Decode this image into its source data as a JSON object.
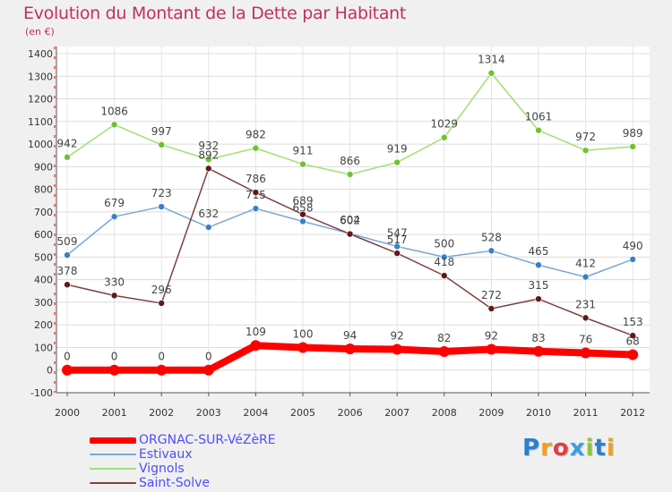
{
  "header": {
    "title": "Evolution du Montant de la Dette par Habitant",
    "unit": "(en €)"
  },
  "logo": {
    "text": "Proxiti",
    "colors": [
      "#2a7fd0",
      "#f0a020",
      "#e04040",
      "#3aa0e0",
      "#8cc63f",
      "#2a7fd0",
      "#f0a020"
    ]
  },
  "chart_data": {
    "type": "line",
    "title": "Evolution du Montant de la Dette par Habitant",
    "ylabel": "(en €)",
    "xlabel": "",
    "x": [
      "2000",
      "2001",
      "2002",
      "2003",
      "2004",
      "2005",
      "2006",
      "2007",
      "2008",
      "2009",
      "2010",
      "2011",
      "2012"
    ],
    "ylim": [
      -100,
      1400
    ],
    "yticks": [
      "-100",
      "0",
      "100",
      "200",
      "300",
      "400",
      "500",
      "600",
      "700",
      "800",
      "900",
      "1000",
      "1100",
      "1200",
      "1300",
      "1400"
    ],
    "grid": "horizontal",
    "legend_position": "bottom-left",
    "series": [
      {
        "name": "Vignols",
        "color": "#a0e070",
        "marker": "#70c030",
        "values": [
          942,
          1086,
          997,
          932,
          982,
          911,
          866,
          919,
          1029,
          1314,
          1061,
          972,
          989
        ],
        "labels": [
          "942",
          "1086",
          "997",
          "932",
          "982",
          "911",
          "866",
          "919",
          "1029",
          "1314",
          "1061",
          "972",
          "989"
        ]
      },
      {
        "name": "Estivaux",
        "color": "#78a8d8",
        "marker": "#3a80c8",
        "values": [
          509,
          679,
          723,
          632,
          715,
          658,
          604,
          547,
          500,
          528,
          465,
          412,
          490
        ],
        "labels": [
          "509",
          "679",
          "723",
          "632",
          "715",
          "658",
          "604",
          "547",
          "500",
          "528",
          "465",
          "412",
          "490"
        ]
      },
      {
        "name": "Saint-Solve",
        "color": "#804040",
        "marker": "#601818",
        "values": [
          378,
          330,
          296,
          892,
          786,
          689,
          602,
          517,
          418,
          272,
          315,
          231,
          153
        ],
        "labels": [
          "378",
          "330",
          "296",
          "892",
          "786",
          "689",
          "602",
          "517",
          "418",
          "272",
          "315",
          "231",
          "153"
        ]
      },
      {
        "name": "ORGNAC-SUR-VéZèRE",
        "color": "#ff0000",
        "marker": "#ff0000",
        "values": [
          0,
          0,
          0,
          0,
          109,
          100,
          94,
          92,
          82,
          92,
          83,
          76,
          68
        ],
        "labels": [
          "0",
          "0",
          "0",
          "0",
          "109",
          "100",
          "94",
          "92",
          "82",
          "92",
          "83",
          "76",
          "68"
        ]
      }
    ],
    "legend": [
      {
        "name": "ORGNAC-SUR-VéZèRE",
        "color": "#ff0000",
        "thickness": 7
      },
      {
        "name": "Estivaux",
        "color": "#78a8d8",
        "thickness": 2
      },
      {
        "name": "Vignols",
        "color": "#a0e070",
        "thickness": 2
      },
      {
        "name": "Saint-Solve",
        "color": "#804040",
        "thickness": 2
      }
    ]
  }
}
